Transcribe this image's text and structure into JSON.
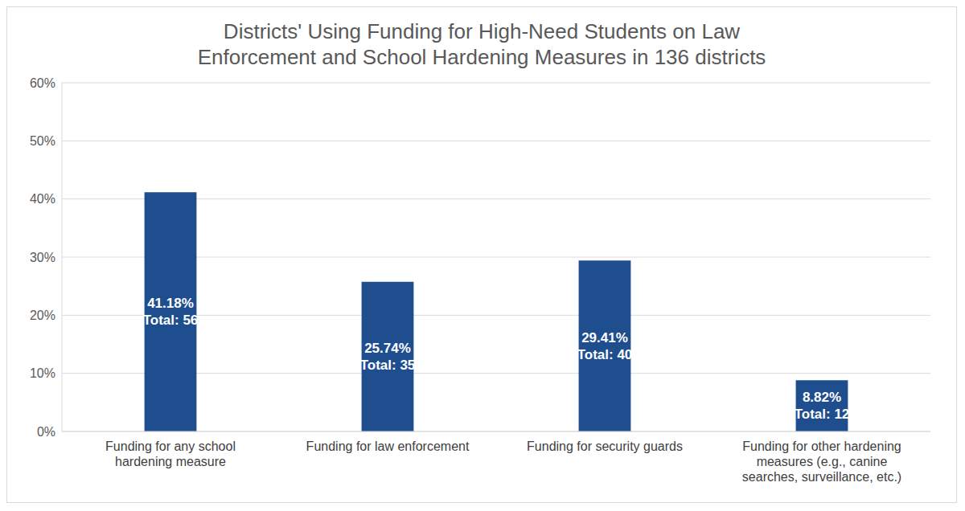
{
  "chart_data": {
    "type": "bar",
    "title": "Districts' Using Funding for High-Need Students on Law Enforcement and School Hardening Measures in 136 districts",
    "categories": [
      "Funding for any school hardening measure",
      "Funding for law enforcement",
      "Funding for security guards",
      "Funding for other hardening measures (e.g., canine searches, surveillance, etc.)"
    ],
    "values": [
      41.18,
      25.74,
      29.41,
      8.82
    ],
    "value_labels": [
      [
        "41.18%",
        "Total: 56"
      ],
      [
        "25.74%",
        "Total: 35"
      ],
      [
        "29.41%",
        "Total: 40"
      ],
      [
        "8.82%",
        "Total: 12"
      ]
    ],
    "color": "#1f4e8f",
    "ylim": [
      0,
      60
    ],
    "yticks": [
      {
        "value": 0,
        "label": "0%"
      },
      {
        "value": 10,
        "label": "10%"
      },
      {
        "value": 20,
        "label": "20%"
      },
      {
        "value": 30,
        "label": "30%"
      },
      {
        "value": 40,
        "label": "40%"
      },
      {
        "value": 50,
        "label": "50%"
      },
      {
        "value": 60,
        "label": "60%"
      }
    ],
    "grid": true,
    "data_labels": true
  }
}
